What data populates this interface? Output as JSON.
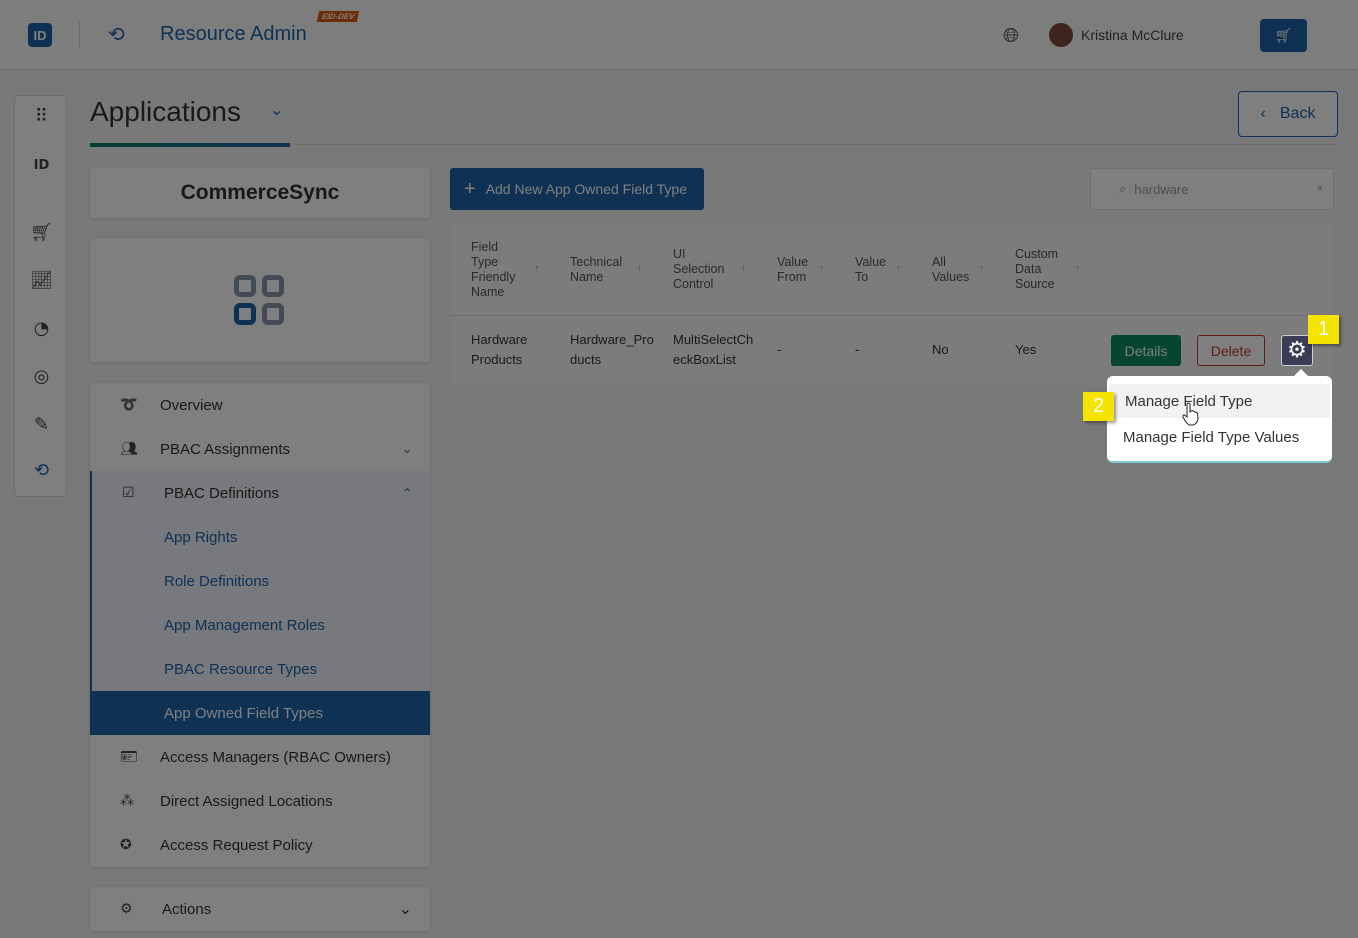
{
  "header": {
    "app_title": "Resource Admin",
    "env_badge": "EID-DEV",
    "logo": "ID",
    "user_name": "Kristina McClure"
  },
  "page": {
    "title": "Applications",
    "back_label": "Back"
  },
  "app": {
    "name": "CommerceSync"
  },
  "menu": {
    "items": [
      {
        "label": "Overview",
        "icon": "glasses-icon"
      },
      {
        "label": "PBAC Assignments",
        "icon": "people-icon",
        "chevron": "down"
      },
      {
        "label": "PBAC Definitions",
        "icon": "checklist-icon",
        "chevron": "up"
      },
      {
        "label": "App Rights"
      },
      {
        "label": "Role Definitions"
      },
      {
        "label": "App Management Roles"
      },
      {
        "label": "PBAC Resource Types"
      },
      {
        "label": "App Owned Field Types",
        "active": true
      },
      {
        "label": "Access Managers (RBAC Owners)",
        "icon": "id-card-icon"
      },
      {
        "label": "Direct Assigned Locations",
        "icon": "locations-icon"
      },
      {
        "label": "Access Request Policy",
        "icon": "policy-icon"
      }
    ]
  },
  "actions": {
    "label": "Actions"
  },
  "toolbar": {
    "add_label": "Add New App Owned Field Type",
    "search_value": "hardware"
  },
  "table": {
    "headers": [
      "Field Type Friendly Name",
      "Technical Name",
      "UI Selection Control",
      "Value From",
      "Value To",
      "All Values",
      "Custom Data Source"
    ],
    "rows": [
      {
        "friendly": "Hardware Products",
        "technical": "Hardware_Products",
        "control": "MultiSelectCheckBoxList",
        "from": "-",
        "to": "-",
        "all": "No",
        "custom": "Yes",
        "details": "Details",
        "delete": "Delete"
      }
    ]
  },
  "dropdown": {
    "items": [
      "Manage Field Type",
      "Manage Field Type Values"
    ]
  },
  "steps": [
    "1",
    "2"
  ],
  "colors": {
    "primary": "#1f63a8",
    "success": "#0b8a62",
    "danger": "#c0392b",
    "highlight": "#f5e400"
  }
}
